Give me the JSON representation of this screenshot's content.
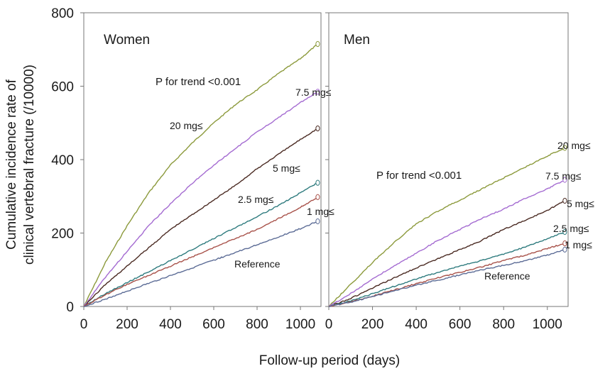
{
  "figure": {
    "ylabel_line1": "Cumulative incidence rate of",
    "ylabel_line2": "clinical vertebral fracture (/10000)",
    "xlabel": "Follow-up period (days)"
  },
  "chart_data": [
    {
      "type": "line",
      "title": "Women",
      "annotation": "P for trend <0.001",
      "x_ticks": [
        0,
        200,
        400,
        600,
        800,
        1000
      ],
      "y_ticks": [
        0,
        200,
        400,
        600,
        800
      ],
      "xlim": [
        0,
        1095
      ],
      "ylim": [
        0,
        800
      ],
      "series": [
        {
          "name": "20 mg≤",
          "color": "#8c9a3c",
          "x": [
            0,
            100,
            200,
            300,
            400,
            500,
            600,
            700,
            800,
            900,
            1000,
            1080
          ],
          "y": [
            0,
            120,
            220,
            310,
            385,
            445,
            500,
            550,
            590,
            635,
            675,
            715
          ]
        },
        {
          "name": "7.5 mg≤",
          "color": "#a46bd1",
          "x": [
            0,
            100,
            200,
            300,
            400,
            500,
            600,
            700,
            800,
            900,
            1000,
            1080
          ],
          "y": [
            0,
            80,
            150,
            220,
            280,
            335,
            385,
            430,
            475,
            515,
            555,
            585
          ]
        },
        {
          "name": "5 mg≤",
          "color": "#4a2a22",
          "x": [
            0,
            100,
            200,
            300,
            400,
            500,
            600,
            700,
            800,
            900,
            1000,
            1080
          ],
          "y": [
            0,
            60,
            110,
            160,
            210,
            250,
            290,
            330,
            375,
            415,
            455,
            485
          ]
        },
        {
          "name": "2.5 mg≤",
          "color": "#2e7b7e",
          "x": [
            0,
            100,
            200,
            300,
            400,
            500,
            600,
            700,
            800,
            900,
            1000,
            1080
          ],
          "y": [
            0,
            35,
            65,
            95,
            125,
            155,
            185,
            215,
            245,
            275,
            310,
            337
          ]
        },
        {
          "name": "1 mg≤",
          "color": "#a8524a",
          "x": [
            0,
            100,
            200,
            300,
            400,
            500,
            600,
            700,
            800,
            900,
            1000,
            1080
          ],
          "y": [
            0,
            32,
            60,
            85,
            110,
            135,
            160,
            185,
            210,
            240,
            270,
            298
          ]
        },
        {
          "name": "Reference",
          "color": "#5c6c96",
          "x": [
            0,
            100,
            200,
            300,
            400,
            500,
            600,
            700,
            800,
            900,
            1000,
            1080
          ],
          "y": [
            0,
            20,
            42,
            63,
            84,
            105,
            126,
            147,
            168,
            190,
            212,
            232
          ]
        }
      ]
    },
    {
      "type": "line",
      "title": "Men",
      "annotation": "P for trend <0.001",
      "x_ticks": [
        0,
        200,
        400,
        600,
        800,
        1000
      ],
      "y_ticks": [
        0,
        200,
        400,
        600,
        800
      ],
      "xlim": [
        0,
        1095
      ],
      "ylim": [
        0,
        800
      ],
      "series": [
        {
          "name": "20 mg≤",
          "color": "#8c9a3c",
          "x": [
            0,
            100,
            200,
            300,
            400,
            500,
            600,
            700,
            800,
            900,
            1000,
            1080
          ],
          "y": [
            0,
            60,
            120,
            175,
            225,
            260,
            290,
            320,
            350,
            380,
            410,
            432
          ]
        },
        {
          "name": "7.5 mg≤",
          "color": "#a46bd1",
          "x": [
            0,
            100,
            200,
            300,
            400,
            500,
            600,
            700,
            800,
            900,
            1000,
            1080
          ],
          "y": [
            0,
            35,
            75,
            110,
            145,
            180,
            210,
            240,
            265,
            295,
            320,
            345
          ]
        },
        {
          "name": "5 mg≤",
          "color": "#4a2a22",
          "x": [
            0,
            100,
            200,
            300,
            400,
            500,
            600,
            700,
            800,
            900,
            1000,
            1080
          ],
          "y": [
            0,
            22,
            50,
            78,
            105,
            130,
            155,
            180,
            210,
            235,
            262,
            288
          ]
        },
        {
          "name": "2.5 mg≤",
          "color": "#2e7b7e",
          "x": [
            0,
            100,
            200,
            300,
            400,
            500,
            600,
            700,
            800,
            900,
            1000,
            1080
          ],
          "y": [
            0,
            15,
            35,
            55,
            75,
            93,
            110,
            125,
            143,
            162,
            185,
            203
          ]
        },
        {
          "name": "1 mg≤",
          "color": "#a8524a",
          "x": [
            0,
            100,
            200,
            300,
            400,
            500,
            600,
            700,
            800,
            900,
            1000,
            1080
          ],
          "y": [
            0,
            12,
            28,
            45,
            62,
            78,
            93,
            108,
            125,
            140,
            158,
            172
          ]
        },
        {
          "name": "Reference",
          "color": "#5c6c96",
          "x": [
            0,
            100,
            200,
            300,
            400,
            500,
            600,
            700,
            800,
            900,
            1000,
            1080
          ],
          "y": [
            0,
            12,
            27,
            43,
            58,
            72,
            86,
            100,
            112,
            125,
            140,
            155
          ]
        }
      ]
    }
  ]
}
